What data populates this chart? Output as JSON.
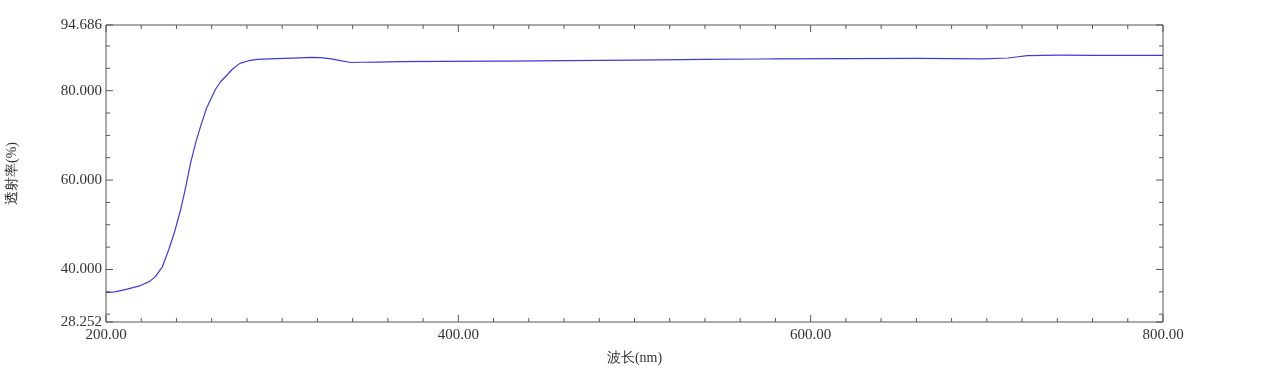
{
  "chart_data": {
    "type": "line",
    "xlabel": "波长(nm)",
    "ylabel": "透射率(%)",
    "marker": "none",
    "line_style": "solid",
    "xlim": [
      200,
      800
    ],
    "xticks": [
      {
        "value": 200,
        "label": "200.00"
      },
      {
        "value": 220,
        "label": null
      },
      {
        "value": 240,
        "label": null
      },
      {
        "value": 260,
        "label": null
      },
      {
        "value": 280,
        "label": null
      },
      {
        "value": 300,
        "label": null
      },
      {
        "value": 320,
        "label": null
      },
      {
        "value": 340,
        "label": null
      },
      {
        "value": 360,
        "label": null
      },
      {
        "value": 380,
        "label": null
      },
      {
        "value": 400,
        "label": "400.00"
      },
      {
        "value": 420,
        "label": null
      },
      {
        "value": 440,
        "label": null
      },
      {
        "value": 460,
        "label": null
      },
      {
        "value": 480,
        "label": null
      },
      {
        "value": 500,
        "label": null
      },
      {
        "value": 520,
        "label": null
      },
      {
        "value": 540,
        "label": null
      },
      {
        "value": 560,
        "label": null
      },
      {
        "value": 580,
        "label": null
      },
      {
        "value": 600,
        "label": "600.00"
      },
      {
        "value": 620,
        "label": null
      },
      {
        "value": 640,
        "label": null
      },
      {
        "value": 660,
        "label": null
      },
      {
        "value": 680,
        "label": null
      },
      {
        "value": 700,
        "label": null
      },
      {
        "value": 720,
        "label": null
      },
      {
        "value": 740,
        "label": null
      },
      {
        "value": 760,
        "label": null
      },
      {
        "value": 780,
        "label": null
      },
      {
        "value": 800,
        "label": "800.00"
      }
    ],
    "ylim": [
      28.252,
      94.686
    ],
    "yticks": [
      {
        "value": 28.252,
        "label": "28.252"
      },
      {
        "value": 30,
        "label": null
      },
      {
        "value": 35,
        "label": null
      },
      {
        "value": 40,
        "label": "40.000"
      },
      {
        "value": 45,
        "label": null
      },
      {
        "value": 50,
        "label": null
      },
      {
        "value": 55,
        "label": null
      },
      {
        "value": 60,
        "label": "60.000"
      },
      {
        "value": 65,
        "label": null
      },
      {
        "value": 70,
        "label": null
      },
      {
        "value": 75,
        "label": null
      },
      {
        "value": 80,
        "label": "80.000"
      },
      {
        "value": 85,
        "label": null
      },
      {
        "value": 90,
        "label": null
      },
      {
        "value": 94.686,
        "label": "94.686"
      }
    ],
    "series": [
      {
        "color": "#3c3cdc",
        "x": [
          200,
          205,
          212,
          219.6,
          225,
          228,
          232,
          235.6,
          239,
          242.3,
          245,
          248,
          251,
          253.6,
          257,
          262,
          265,
          268.7,
          272,
          276,
          281,
          286,
          293,
          301,
          310,
          316,
          322,
          328,
          333,
          339,
          345,
          355,
          367,
          390,
          420,
          460,
          500,
          540,
          580,
          620,
          660,
          680,
          698,
          712,
          723,
          740,
          760,
          780,
          800
        ],
        "values": [
          34.8,
          35.0,
          35.6,
          36.4,
          37.4,
          38.4,
          40.6,
          44.4,
          48.5,
          53.3,
          58,
          63.8,
          68.5,
          71.9,
          76,
          80.2,
          82,
          83.5,
          84.9,
          86.1,
          86.7,
          87.0,
          87.1,
          87.2,
          87.35,
          87.45,
          87.4,
          87.1,
          86.7,
          86.3,
          86.35,
          86.4,
          86.5,
          86.55,
          86.6,
          86.7,
          86.85,
          87.0,
          87.1,
          87.15,
          87.2,
          87.15,
          87.1,
          87.3,
          87.85,
          87.95,
          87.9,
          87.9,
          87.9
        ]
      }
    ]
  }
}
